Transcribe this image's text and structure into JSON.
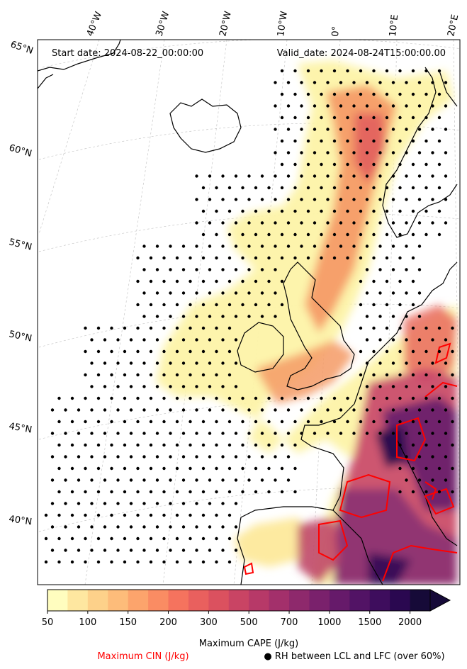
{
  "header": {
    "start_date": "Start date: 2024-08-22_00:00:00",
    "valid_date": "Valid_date: 2024-08-24T15:00:00.00"
  },
  "lon_labels": [
    "40°W",
    "30°W",
    "20°W",
    "10°W",
    "0°",
    "10°E",
    "20°E"
  ],
  "lat_labels": [
    "65°N",
    "60°N",
    "55°N",
    "50°N",
    "45°N",
    "40°N"
  ],
  "colorbar": {
    "ticks": [
      "50",
      "100",
      "150",
      "200",
      "300",
      "500",
      "700",
      "1000",
      "1500",
      "2000"
    ],
    "colors": [
      "#fffdbf",
      "#fee7a0",
      "#fdd18a",
      "#fdbc7a",
      "#fca46c",
      "#fa8c63",
      "#f5735e",
      "#e9605e",
      "#db515f",
      "#c94464",
      "#b73968",
      "#a3306b",
      "#8e296c",
      "#7a216c",
      "#661a6a",
      "#521365",
      "#3e0d5d",
      "#2a0850",
      "#160a38"
    ],
    "extend_color": "#160a38",
    "title": "Maximum CAPE (J/kg)"
  },
  "legend": {
    "cin_label": "Maximum CIN (J/kg)",
    "cin_color": "#ff0000",
    "rh_label": "● RH between LCL and LFC (over 60%)"
  }
}
